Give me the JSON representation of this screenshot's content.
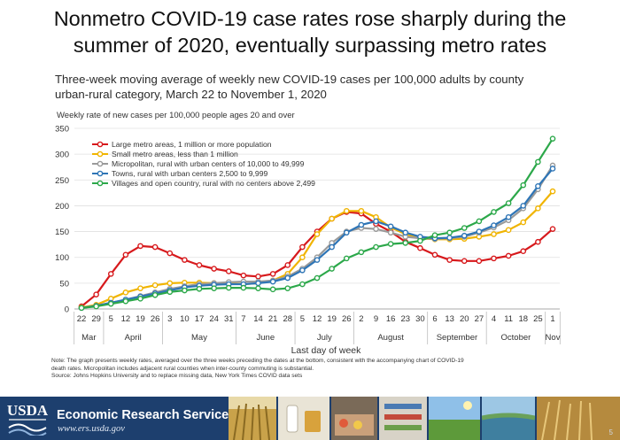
{
  "slide": {
    "title_line1": "Nonmetro COVID-19 case rates rose sharply during the",
    "title_line2": "summer of 2020, eventually surpassing metro rates",
    "subtitle_line1": "Three-week moving average of weekly new COVID-19 cases per 100,000 adults by county",
    "subtitle_line2": "urban-rural category, March 22 to November 1, 2020"
  },
  "chart_data": {
    "type": "line",
    "ylabel": "Weekly rate of new cases per 100,000 people ages 20 and over",
    "xlabel": "Last day of week",
    "ylim": [
      0,
      350
    ],
    "yticks": [
      0,
      50,
      100,
      150,
      200,
      250,
      300,
      350
    ],
    "x": [
      "22",
      "29",
      "5",
      "12",
      "19",
      "26",
      "3",
      "10",
      "17",
      "24",
      "31",
      "7",
      "14",
      "21",
      "28",
      "5",
      "12",
      "19",
      "26",
      "2",
      "9",
      "16",
      "23",
      "30",
      "6",
      "13",
      "20",
      "27",
      "4",
      "11",
      "18",
      "25",
      "1"
    ],
    "months": [
      {
        "name": "Mar",
        "start": 0,
        "end": 1
      },
      {
        "name": "April",
        "start": 2,
        "end": 5
      },
      {
        "name": "May",
        "start": 6,
        "end": 10
      },
      {
        "name": "June",
        "start": 11,
        "end": 14
      },
      {
        "name": "July",
        "start": 15,
        "end": 18
      },
      {
        "name": "August",
        "start": 19,
        "end": 23
      },
      {
        "name": "September",
        "start": 24,
        "end": 27
      },
      {
        "name": "October",
        "start": 28,
        "end": 31
      },
      {
        "name": "Nov",
        "start": 32,
        "end": 32
      }
    ],
    "legend_position": "top-left",
    "grid": "horizontal",
    "series": [
      {
        "name": "Large metro areas, 1 million or more population",
        "color": "#d7191c",
        "values": [
          5,
          28,
          68,
          105,
          122,
          120,
          108,
          95,
          85,
          78,
          73,
          65,
          63,
          68,
          85,
          120,
          150,
          175,
          188,
          185,
          165,
          150,
          130,
          118,
          105,
          95,
          93,
          93,
          98,
          103,
          112,
          130,
          155
        ]
      },
      {
        "name": "Small metro areas, less than 1 million",
        "color": "#f0b400",
        "values": [
          3,
          8,
          20,
          32,
          40,
          46,
          50,
          51,
          51,
          50,
          49,
          48,
          50,
          55,
          68,
          100,
          145,
          175,
          190,
          190,
          178,
          158,
          145,
          137,
          135,
          135,
          136,
          140,
          145,
          153,
          168,
          195,
          228
        ]
      },
      {
        "name": "Micropolitan, rural with urban centers of 10,000 to 49,999",
        "color": "#9a9a9a",
        "values": [
          2,
          6,
          12,
          18,
          25,
          32,
          39,
          44,
          48,
          50,
          52,
          53,
          53,
          55,
          63,
          78,
          100,
          128,
          150,
          157,
          155,
          148,
          140,
          137,
          136,
          137,
          140,
          148,
          158,
          172,
          195,
          232,
          278
        ]
      },
      {
        "name": "Towns, rural with urban centers 2,500 to 9,999",
        "color": "#2e75b6",
        "values": [
          2,
          6,
          12,
          18,
          24,
          30,
          36,
          42,
          45,
          47,
          48,
          48,
          50,
          53,
          60,
          75,
          95,
          120,
          148,
          163,
          170,
          160,
          148,
          140,
          137,
          138,
          142,
          150,
          162,
          178,
          200,
          238,
          272
        ]
      },
      {
        "name": "Villages and open country, rural with no centers above 2,499",
        "color": "#2ca84a",
        "values": [
          2,
          5,
          10,
          15,
          20,
          27,
          33,
          36,
          39,
          40,
          41,
          41,
          40,
          38,
          40,
          48,
          60,
          78,
          98,
          110,
          120,
          126,
          128,
          132,
          143,
          148,
          157,
          170,
          188,
          205,
          240,
          285,
          330
        ]
      }
    ]
  },
  "notes": {
    "line1": "Note: The graph presents weekly rates, averaged over the three weeks preceding the dates at the bottom, consistent with the accompanying chart of COVID-19",
    "line2": "death rates. Micropolitan includes adjacent rural counties when inter-county commuting is substantial.",
    "line3": "Source: Johns Hopkins University and to replace missing data, New York Times COVID data sets"
  },
  "footer": {
    "logo": "USDA",
    "agency": "Economic Research Service",
    "website": "www.ers.usda.gov",
    "page_number": "5",
    "colors": {
      "band": "#1d3f6e",
      "text": "#ffffff"
    }
  }
}
